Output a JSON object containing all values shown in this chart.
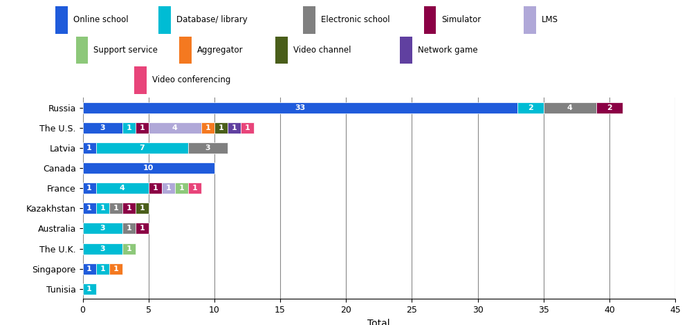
{
  "countries": [
    "Russia",
    "The U.S.",
    "Latvia",
    "Canada",
    "France",
    "Kazakhstan",
    "Australia",
    "The U.K.",
    "Singapore",
    "Tunisia"
  ],
  "categories": [
    "Online school",
    "Database/ library",
    "Electronic school",
    "Simulator",
    "LMS",
    "Support service",
    "Aggregator",
    "Video channel",
    "Network game",
    "Video conferencing"
  ],
  "colors": [
    "#1f5bdb",
    "#00bcd4",
    "#808080",
    "#8b0045",
    "#b0a8d8",
    "#8dc87a",
    "#f47920",
    "#4a5e1a",
    "#6040a0",
    "#e8447a"
  ],
  "row_data": {
    "Russia": {
      "Online school": 33,
      "Database/ library": 2,
      "Electronic school": 4,
      "Simulator": 2,
      "LMS": 0,
      "Support service": 0,
      "Aggregator": 0,
      "Video channel": 0,
      "Network game": 0,
      "Video conferencing": 0
    },
    "The U.S.": {
      "Online school": 3,
      "Database/ library": 1,
      "Electronic school": 0,
      "Simulator": 1,
      "LMS": 4,
      "Support service": 0,
      "Aggregator": 1,
      "Video channel": 1,
      "Network game": 1,
      "Video conferencing": 1
    },
    "Latvia": {
      "Online school": 1,
      "Database/ library": 7,
      "Electronic school": 3,
      "Simulator": 0,
      "LMS": 0,
      "Support service": 0,
      "Aggregator": 0,
      "Video channel": 0,
      "Network game": 0,
      "Video conferencing": 0
    },
    "Canada": {
      "Online school": 10,
      "Database/ library": 0,
      "Electronic school": 0,
      "Simulator": 0,
      "LMS": 0,
      "Support service": 0,
      "Aggregator": 0,
      "Video channel": 0,
      "Network game": 0,
      "Video conferencing": 0
    },
    "France": {
      "Online school": 1,
      "Database/ library": 4,
      "Electronic school": 0,
      "Simulator": 1,
      "LMS": 1,
      "Support service": 1,
      "Aggregator": 0,
      "Video channel": 0,
      "Network game": 0,
      "Video conferencing": 1
    },
    "Kazakhstan": {
      "Online school": 1,
      "Database/ library": 1,
      "Electronic school": 1,
      "Simulator": 1,
      "LMS": 0,
      "Support service": 0,
      "Aggregator": 0,
      "Video channel": 1,
      "Network game": 0,
      "Video conferencing": 0
    },
    "Australia": {
      "Online school": 0,
      "Database/ library": 3,
      "Electronic school": 1,
      "Simulator": 1,
      "LMS": 0,
      "Support service": 0,
      "Aggregator": 0,
      "Video channel": 0,
      "Network game": 0,
      "Video conferencing": 0
    },
    "The U.K.": {
      "Online school": 0,
      "Database/ library": 3,
      "Electronic school": 0,
      "Simulator": 0,
      "LMS": 0,
      "Support service": 1,
      "Aggregator": 0,
      "Video channel": 0,
      "Network game": 0,
      "Video conferencing": 0
    },
    "Singapore": {
      "Online school": 1,
      "Database/ library": 1,
      "Electronic school": 0,
      "Simulator": 0,
      "LMS": 0,
      "Support service": 0,
      "Aggregator": 1,
      "Video channel": 0,
      "Network game": 0,
      "Video conferencing": 0
    },
    "Tunisia": {
      "Online school": 0,
      "Database/ library": 1,
      "Electronic school": 0,
      "Simulator": 0,
      "LMS": 0,
      "Support service": 0,
      "Aggregator": 0,
      "Video channel": 0,
      "Network game": 0,
      "Video conferencing": 0
    }
  },
  "xlim": [
    0,
    45
  ],
  "xlabel": "Total",
  "bg_color": "#ffffff",
  "grid_color": "#888888",
  "label_fontsize": 9,
  "tick_fontsize": 9,
  "bar_height": 0.55,
  "legend_row1": [
    "Online school",
    "Database/ library",
    "",
    "Electronic school",
    "Simulator",
    "LMS"
  ],
  "legend_row2": [
    "",
    "Support service",
    "",
    "Aggregator",
    "Video channel",
    "Network game"
  ],
  "legend_row3": [
    "",
    "",
    "",
    "Video conferencing",
    "",
    ""
  ]
}
